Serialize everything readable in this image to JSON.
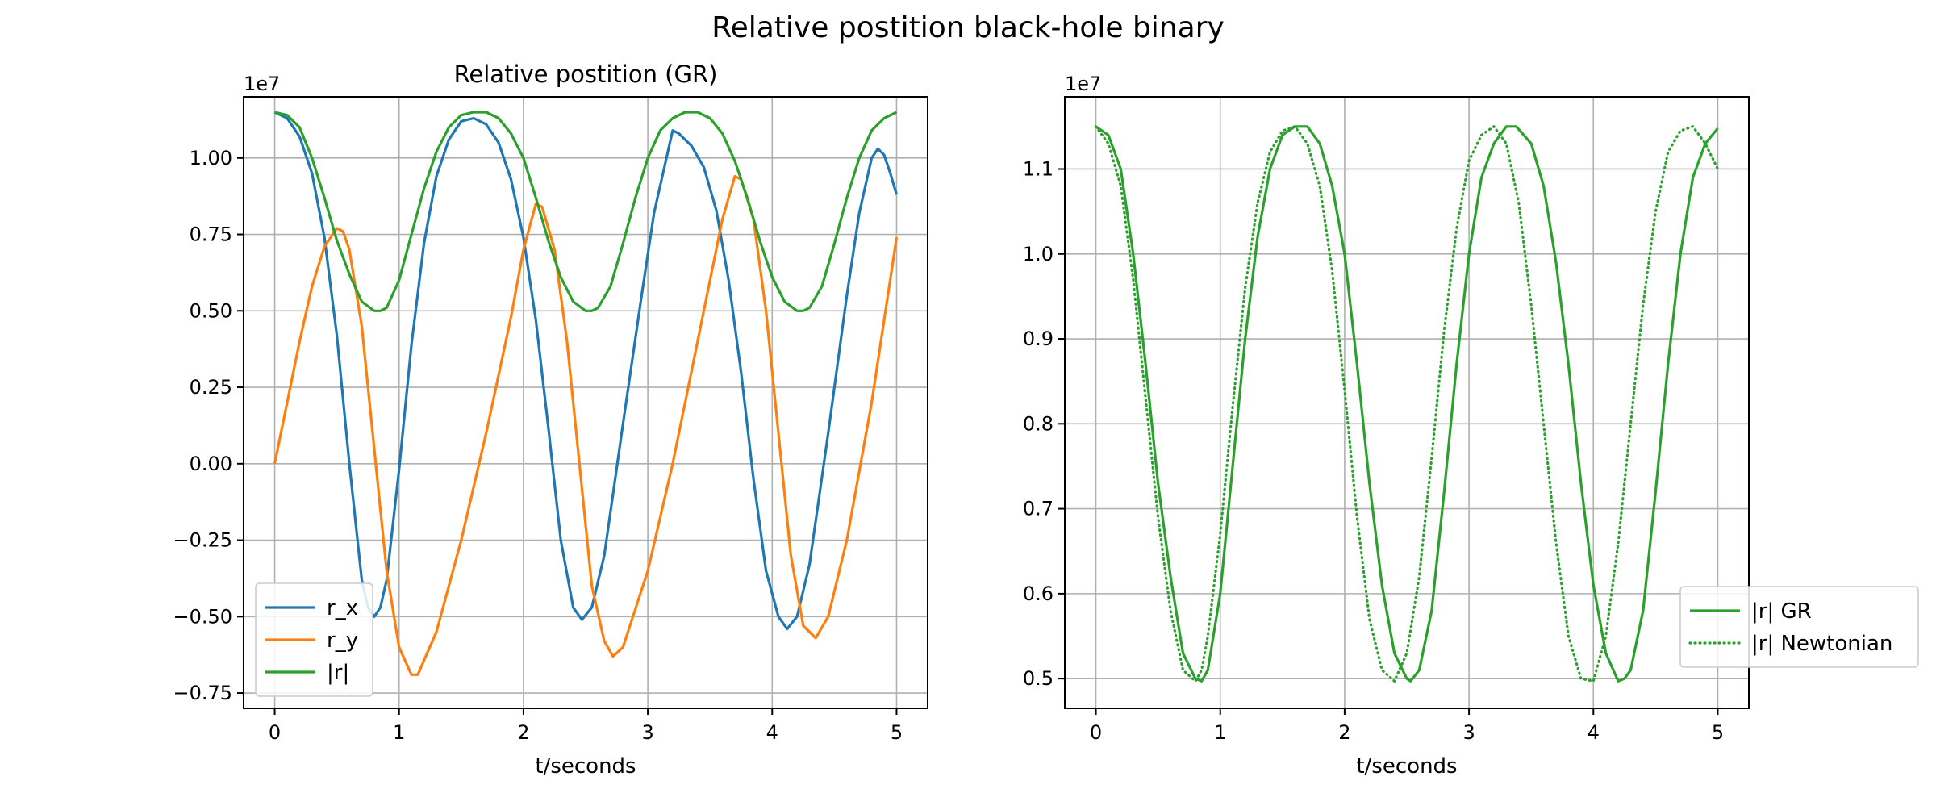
{
  "figure": {
    "suptitle": "Relative postition black-hole binary"
  },
  "chart_data": [
    {
      "type": "line",
      "title": "Relative postition (GR)",
      "xlabel": "t/seconds",
      "ylabel": "",
      "offset_text": "1e7",
      "xlim": [
        -0.25,
        5.25
      ],
      "ylim": [
        -0.8,
        1.2
      ],
      "xticks": [
        0,
        1,
        2,
        3,
        4,
        5
      ],
      "xticklabels": [
        "0",
        "1",
        "2",
        "3",
        "4",
        "5"
      ],
      "yticks": [
        -0.75,
        -0.5,
        -0.25,
        0.0,
        0.25,
        0.5,
        0.75,
        1.0
      ],
      "yticklabels": [
        "−0.75",
        "−0.50",
        "−0.25",
        "0.00",
        "0.25",
        "0.50",
        "0.75",
        "1.00"
      ],
      "grid": true,
      "legend_position": "lower-left",
      "series": [
        {
          "name": "r_x",
          "color": "#1f77b4",
          "style": "solid",
          "points": [
            [
              0.0,
              1.15
            ],
            [
              0.1,
              1.13
            ],
            [
              0.2,
              1.07
            ],
            [
              0.3,
              0.95
            ],
            [
              0.4,
              0.74
            ],
            [
              0.5,
              0.42
            ],
            [
              0.6,
              0.0
            ],
            [
              0.7,
              -0.38
            ],
            [
              0.75,
              -0.47
            ],
            [
              0.8,
              -0.5
            ],
            [
              0.85,
              -0.47
            ],
            [
              0.9,
              -0.38
            ],
            [
              1.0,
              -0.02
            ],
            [
              1.1,
              0.39
            ],
            [
              1.2,
              0.72
            ],
            [
              1.3,
              0.94
            ],
            [
              1.4,
              1.06
            ],
            [
              1.5,
              1.12
            ],
            [
              1.6,
              1.13
            ],
            [
              1.7,
              1.11
            ],
            [
              1.8,
              1.05
            ],
            [
              1.9,
              0.93
            ],
            [
              2.0,
              0.74
            ],
            [
              2.1,
              0.47
            ],
            [
              2.2,
              0.12
            ],
            [
              2.3,
              -0.25
            ],
            [
              2.4,
              -0.47
            ],
            [
              2.47,
              -0.51
            ],
            [
              2.55,
              -0.47
            ],
            [
              2.65,
              -0.3
            ],
            [
              2.8,
              0.13
            ],
            [
              2.95,
              0.55
            ],
            [
              3.05,
              0.82
            ],
            [
              3.15,
              1.0
            ],
            [
              3.2,
              1.09
            ],
            [
              3.25,
              1.08
            ],
            [
              3.35,
              1.04
            ],
            [
              3.45,
              0.97
            ],
            [
              3.55,
              0.83
            ],
            [
              3.65,
              0.6
            ],
            [
              3.75,
              0.3
            ],
            [
              3.85,
              -0.05
            ],
            [
              3.95,
              -0.35
            ],
            [
              4.05,
              -0.5
            ],
            [
              4.12,
              -0.54
            ],
            [
              4.2,
              -0.5
            ],
            [
              4.3,
              -0.33
            ],
            [
              4.45,
              0.1
            ],
            [
              4.6,
              0.55
            ],
            [
              4.7,
              0.82
            ],
            [
              4.8,
              1.0
            ],
            [
              4.85,
              1.03
            ],
            [
              4.9,
              1.01
            ],
            [
              4.95,
              0.95
            ],
            [
              5.0,
              0.88
            ]
          ]
        },
        {
          "name": "r_y",
          "color": "#ff7f0e",
          "style": "solid",
          "points": [
            [
              0.0,
              0.0
            ],
            [
              0.1,
              0.2
            ],
            [
              0.2,
              0.4
            ],
            [
              0.3,
              0.58
            ],
            [
              0.4,
              0.71
            ],
            [
              0.5,
              0.77
            ],
            [
              0.55,
              0.76
            ],
            [
              0.6,
              0.7
            ],
            [
              0.7,
              0.45
            ],
            [
              0.8,
              0.05
            ],
            [
              0.9,
              -0.35
            ],
            [
              1.0,
              -0.6
            ],
            [
              1.1,
              -0.69
            ],
            [
              1.15,
              -0.69
            ],
            [
              1.3,
              -0.55
            ],
            [
              1.5,
              -0.25
            ],
            [
              1.7,
              0.1
            ],
            [
              1.9,
              0.48
            ],
            [
              2.0,
              0.7
            ],
            [
              2.1,
              0.85
            ],
            [
              2.15,
              0.84
            ],
            [
              2.25,
              0.7
            ],
            [
              2.35,
              0.4
            ],
            [
              2.45,
              0.0
            ],
            [
              2.55,
              -0.4
            ],
            [
              2.65,
              -0.58
            ],
            [
              2.72,
              -0.63
            ],
            [
              2.8,
              -0.6
            ],
            [
              3.0,
              -0.35
            ],
            [
              3.2,
              0.0
            ],
            [
              3.4,
              0.4
            ],
            [
              3.6,
              0.8
            ],
            [
              3.7,
              0.94
            ],
            [
              3.75,
              0.93
            ],
            [
              3.85,
              0.8
            ],
            [
              3.95,
              0.5
            ],
            [
              4.05,
              0.1
            ],
            [
              4.15,
              -0.3
            ],
            [
              4.25,
              -0.53
            ],
            [
              4.35,
              -0.57
            ],
            [
              4.45,
              -0.5
            ],
            [
              4.6,
              -0.25
            ],
            [
              4.8,
              0.2
            ],
            [
              5.0,
              0.74
            ]
          ]
        },
        {
          "name": "|r|",
          "color": "#2ca02c",
          "style": "solid",
          "points": [
            [
              0.0,
              1.15
            ],
            [
              0.1,
              1.14
            ],
            [
              0.2,
              1.1
            ],
            [
              0.3,
              1.0
            ],
            [
              0.4,
              0.87
            ],
            [
              0.5,
              0.73
            ],
            [
              0.6,
              0.62
            ],
            [
              0.7,
              0.53
            ],
            [
              0.8,
              0.5
            ],
            [
              0.85,
              0.5
            ],
            [
              0.9,
              0.51
            ],
            [
              1.0,
              0.6
            ],
            [
              1.1,
              0.75
            ],
            [
              1.2,
              0.9
            ],
            [
              1.3,
              1.02
            ],
            [
              1.4,
              1.1
            ],
            [
              1.5,
              1.14
            ],
            [
              1.6,
              1.15
            ],
            [
              1.7,
              1.15
            ],
            [
              1.8,
              1.13
            ],
            [
              1.9,
              1.08
            ],
            [
              2.0,
              1.0
            ],
            [
              2.1,
              0.87
            ],
            [
              2.2,
              0.73
            ],
            [
              2.3,
              0.61
            ],
            [
              2.4,
              0.53
            ],
            [
              2.5,
              0.5
            ],
            [
              2.55,
              0.5
            ],
            [
              2.6,
              0.51
            ],
            [
              2.7,
              0.58
            ],
            [
              2.8,
              0.72
            ],
            [
              2.9,
              0.87
            ],
            [
              3.0,
              1.0
            ],
            [
              3.1,
              1.09
            ],
            [
              3.2,
              1.13
            ],
            [
              3.3,
              1.15
            ],
            [
              3.4,
              1.15
            ],
            [
              3.5,
              1.13
            ],
            [
              3.6,
              1.08
            ],
            [
              3.7,
              0.99
            ],
            [
              3.8,
              0.87
            ],
            [
              3.9,
              0.73
            ],
            [
              4.0,
              0.61
            ],
            [
              4.1,
              0.53
            ],
            [
              4.2,
              0.5
            ],
            [
              4.25,
              0.5
            ],
            [
              4.3,
              0.51
            ],
            [
              4.4,
              0.58
            ],
            [
              4.5,
              0.72
            ],
            [
              4.6,
              0.87
            ],
            [
              4.7,
              1.0
            ],
            [
              4.8,
              1.09
            ],
            [
              4.9,
              1.13
            ],
            [
              5.0,
              1.15
            ]
          ]
        }
      ]
    },
    {
      "type": "line",
      "title": "",
      "xlabel": "t/seconds",
      "ylabel": "",
      "offset_text": "1e7",
      "xlim": [
        -0.25,
        5.25
      ],
      "ylim": [
        0.465,
        1.185
      ],
      "xticks": [
        0,
        1,
        2,
        3,
        4,
        5
      ],
      "xticklabels": [
        "0",
        "1",
        "2",
        "3",
        "4",
        "5"
      ],
      "yticks": [
        0.5,
        0.6,
        0.7,
        0.8,
        0.9,
        1.0,
        1.1
      ],
      "yticklabels": [
        "0.5",
        "0.6",
        "0.7",
        "0.8",
        "0.9",
        "1.0",
        "1.1"
      ],
      "grid": true,
      "legend_position": "lower-right",
      "series": [
        {
          "name": "|r| GR",
          "color": "#2ca02c",
          "style": "solid",
          "points": [
            [
              0.0,
              1.15
            ],
            [
              0.1,
              1.14
            ],
            [
              0.2,
              1.1
            ],
            [
              0.3,
              1.0
            ],
            [
              0.4,
              0.87
            ],
            [
              0.5,
              0.73
            ],
            [
              0.6,
              0.62
            ],
            [
              0.7,
              0.53
            ],
            [
              0.8,
              0.5
            ],
            [
              0.85,
              0.497
            ],
            [
              0.9,
              0.51
            ],
            [
              1.0,
              0.6
            ],
            [
              1.1,
              0.75
            ],
            [
              1.2,
              0.9
            ],
            [
              1.3,
              1.02
            ],
            [
              1.4,
              1.1
            ],
            [
              1.5,
              1.14
            ],
            [
              1.6,
              1.15
            ],
            [
              1.7,
              1.15
            ],
            [
              1.8,
              1.13
            ],
            [
              1.9,
              1.08
            ],
            [
              2.0,
              1.0
            ],
            [
              2.1,
              0.87
            ],
            [
              2.2,
              0.73
            ],
            [
              2.3,
              0.61
            ],
            [
              2.4,
              0.53
            ],
            [
              2.5,
              0.5
            ],
            [
              2.53,
              0.497
            ],
            [
              2.6,
              0.51
            ],
            [
              2.7,
              0.58
            ],
            [
              2.8,
              0.72
            ],
            [
              2.9,
              0.87
            ],
            [
              3.0,
              1.0
            ],
            [
              3.1,
              1.09
            ],
            [
              3.2,
              1.13
            ],
            [
              3.3,
              1.15
            ],
            [
              3.38,
              1.15
            ],
            [
              3.5,
              1.13
            ],
            [
              3.6,
              1.08
            ],
            [
              3.7,
              0.99
            ],
            [
              3.8,
              0.87
            ],
            [
              3.9,
              0.73
            ],
            [
              4.0,
              0.61
            ],
            [
              4.1,
              0.53
            ],
            [
              4.2,
              0.497
            ],
            [
              4.25,
              0.5
            ],
            [
              4.3,
              0.51
            ],
            [
              4.4,
              0.58
            ],
            [
              4.5,
              0.72
            ],
            [
              4.6,
              0.87
            ],
            [
              4.7,
              1.0
            ],
            [
              4.8,
              1.09
            ],
            [
              4.9,
              1.13
            ],
            [
              5.0,
              1.148
            ]
          ]
        },
        {
          "name": "|r| Newtonian",
          "color": "#2ca02c",
          "style": "dotted",
          "points": [
            [
              0.0,
              1.15
            ],
            [
              0.1,
              1.13
            ],
            [
              0.2,
              1.08
            ],
            [
              0.3,
              0.97
            ],
            [
              0.4,
              0.83
            ],
            [
              0.5,
              0.69
            ],
            [
              0.6,
              0.58
            ],
            [
              0.7,
              0.51
            ],
            [
              0.8,
              0.497
            ],
            [
              0.85,
              0.51
            ],
            [
              0.9,
              0.55
            ],
            [
              1.0,
              0.67
            ],
            [
              1.1,
              0.82
            ],
            [
              1.2,
              0.96
            ],
            [
              1.3,
              1.06
            ],
            [
              1.4,
              1.12
            ],
            [
              1.5,
              1.145
            ],
            [
              1.6,
              1.15
            ],
            [
              1.7,
              1.13
            ],
            [
              1.8,
              1.08
            ],
            [
              1.9,
              0.98
            ],
            [
              2.0,
              0.84
            ],
            [
              2.1,
              0.69
            ],
            [
              2.2,
              0.57
            ],
            [
              2.3,
              0.51
            ],
            [
              2.4,
              0.497
            ],
            [
              2.5,
              0.53
            ],
            [
              2.6,
              0.62
            ],
            [
              2.7,
              0.76
            ],
            [
              2.8,
              0.91
            ],
            [
              2.9,
              1.03
            ],
            [
              3.0,
              1.11
            ],
            [
              3.1,
              1.14
            ],
            [
              3.2,
              1.15
            ],
            [
              3.3,
              1.13
            ],
            [
              3.4,
              1.06
            ],
            [
              3.5,
              0.94
            ],
            [
              3.6,
              0.8
            ],
            [
              3.7,
              0.66
            ],
            [
              3.8,
              0.55
            ],
            [
              3.9,
              0.5
            ],
            [
              4.0,
              0.497
            ],
            [
              4.1,
              0.55
            ],
            [
              4.2,
              0.66
            ],
            [
              4.3,
              0.8
            ],
            [
              4.4,
              0.94
            ],
            [
              4.5,
              1.05
            ],
            [
              4.6,
              1.12
            ],
            [
              4.7,
              1.145
            ],
            [
              4.8,
              1.15
            ],
            [
              4.9,
              1.13
            ],
            [
              5.0,
              1.1
            ]
          ]
        }
      ]
    }
  ]
}
